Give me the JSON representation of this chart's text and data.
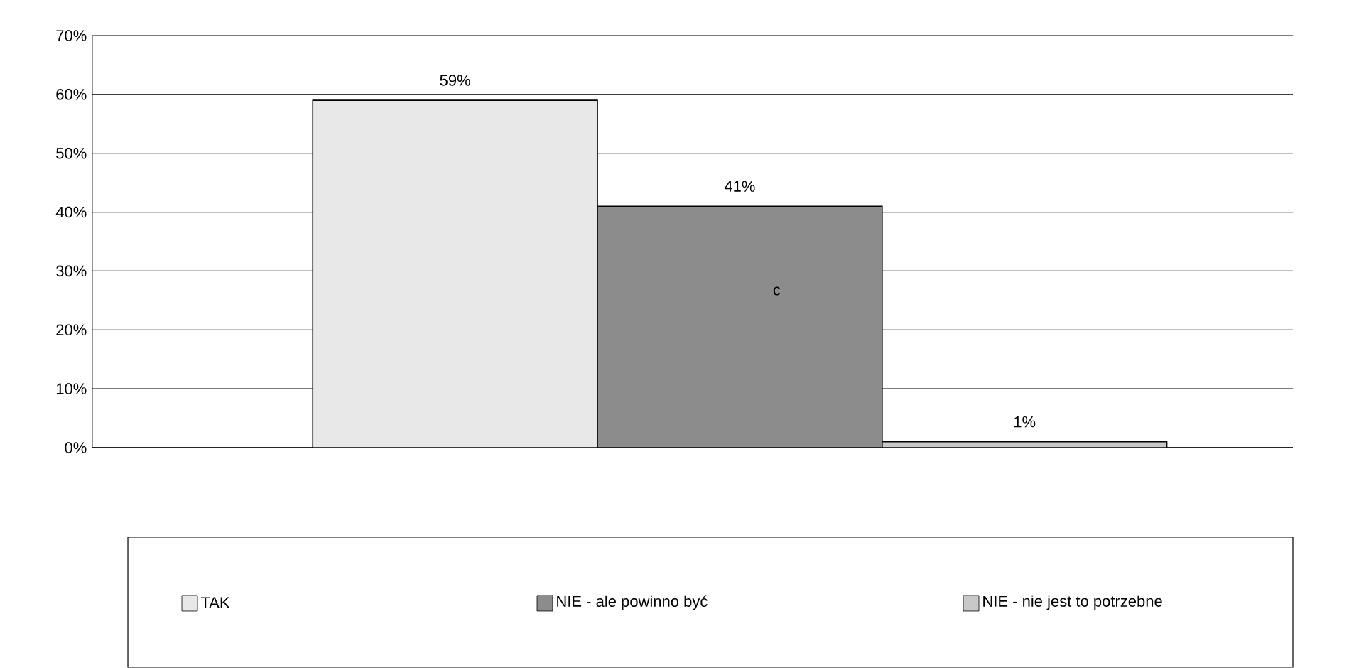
{
  "chart_data": {
    "type": "bar",
    "categories": [
      null
    ],
    "series": [
      {
        "name": "TAK",
        "color": "#e8e8e8",
        "values": [
          59
        ],
        "value_labels": [
          "59%"
        ]
      },
      {
        "name": "NIE - ale powinno być",
        "color": "#8c8c8c",
        "values": [
          41
        ],
        "value_labels": [
          "41%"
        ]
      },
      {
        "name": "NIE - nie jest to potrzebne",
        "color": "#c8c8c8",
        "values": [
          1
        ],
        "value_labels": [
          "1%"
        ]
      }
    ],
    "ylim": [
      0,
      70
    ],
    "yticks": [
      {
        "value": 0,
        "label": "0%"
      },
      {
        "value": 10,
        "label": "10%"
      },
      {
        "value": 20,
        "label": "20%"
      },
      {
        "value": 30,
        "label": "30%"
      },
      {
        "value": 40,
        "label": "40%"
      },
      {
        "value": 50,
        "label": "50%"
      },
      {
        "value": 60,
        "label": "60%"
      },
      {
        "value": 70,
        "label": "70%"
      }
    ],
    "grid": "y",
    "legend": "bottom",
    "annotations": [
      "c"
    ]
  }
}
